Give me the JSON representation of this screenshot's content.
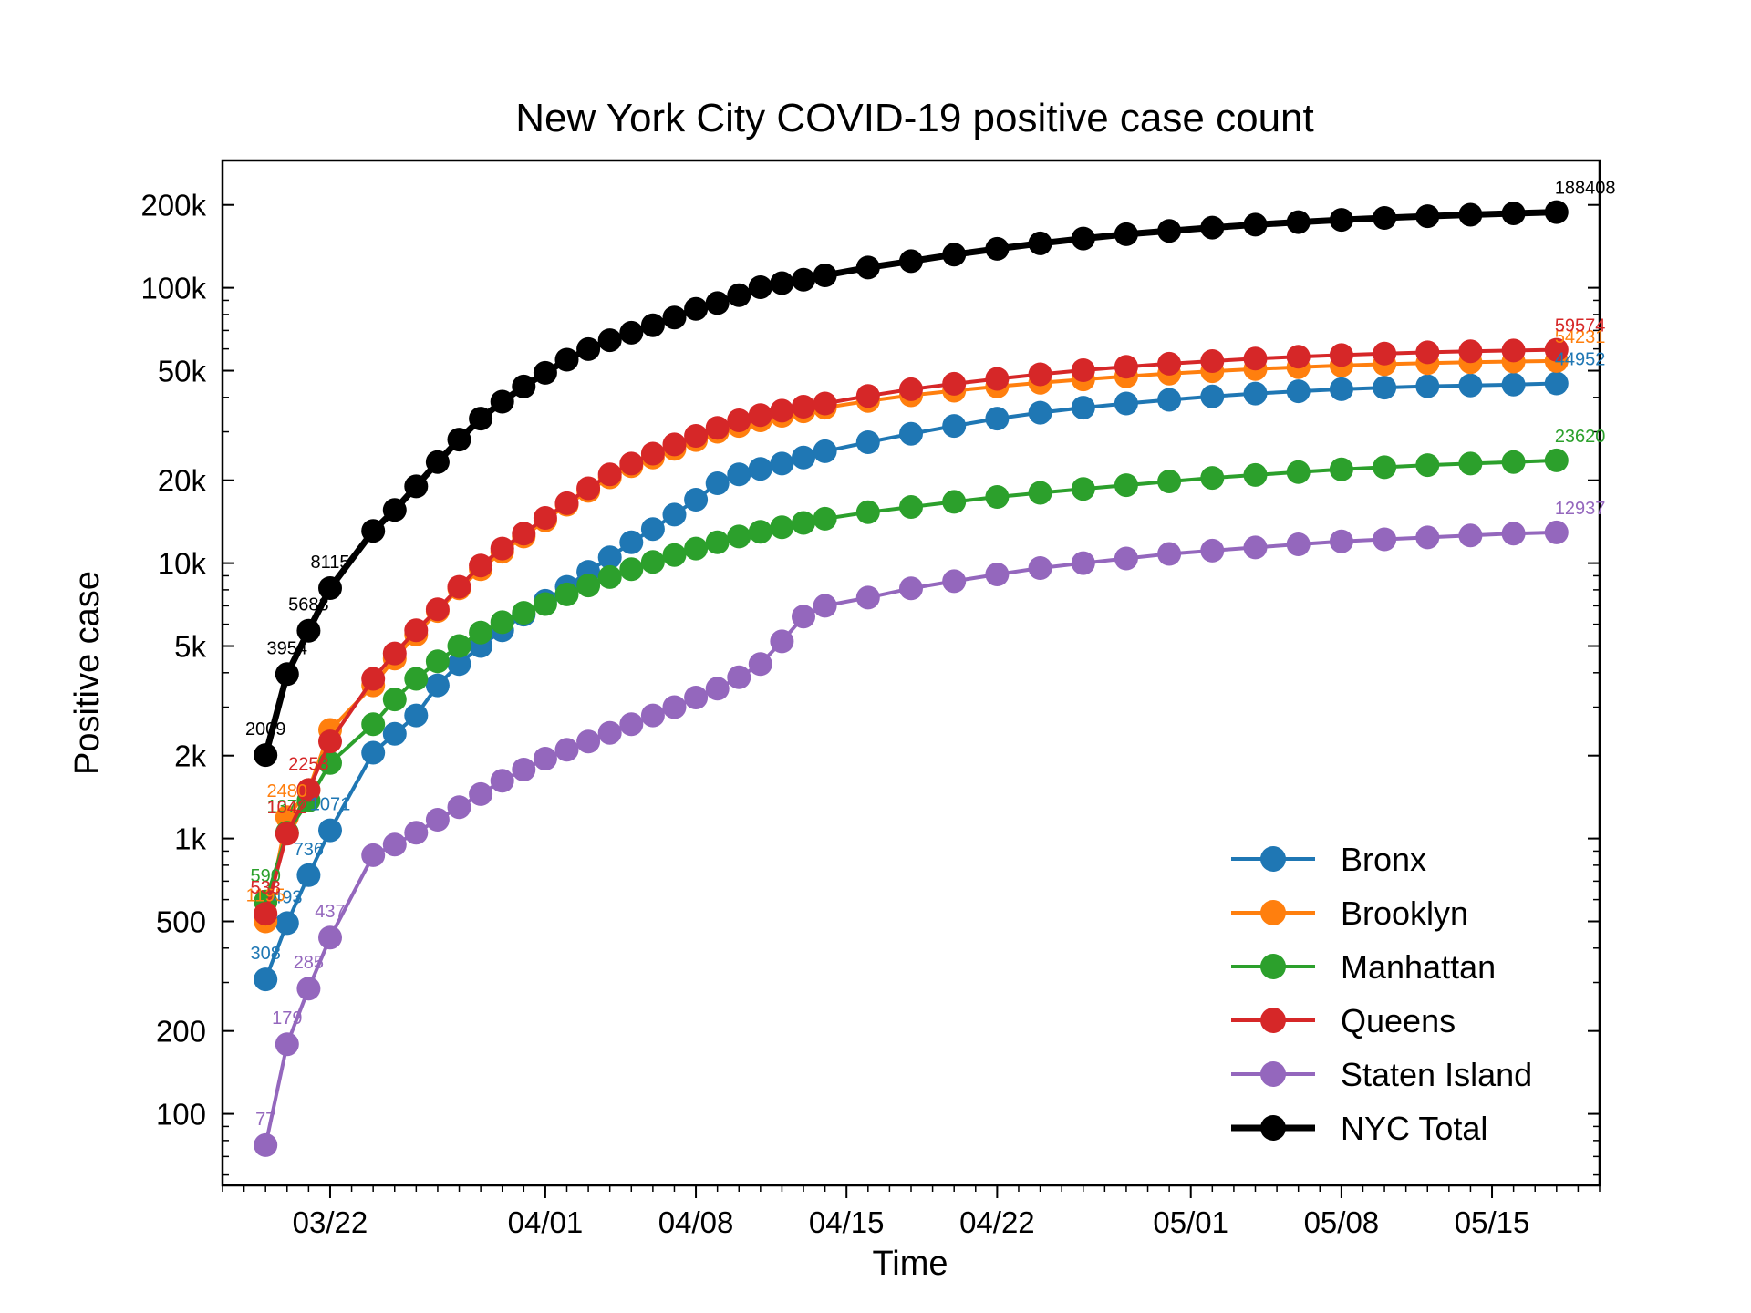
{
  "chart_data": {
    "type": "line",
    "title": "New York City COVID-19 positive case count",
    "xlabel": "Time",
    "ylabel": "Positive case",
    "yscale": "log",
    "ylim": [
      55,
      290000
    ],
    "xlim": [
      "2020-03-17",
      "2020-05-20"
    ],
    "grid": false,
    "legend_placement": "lower-right",
    "x_tick_labels": [
      {
        "date": "2020-03-22",
        "label": "03/22"
      },
      {
        "date": "2020-04-01",
        "label": "04/01"
      },
      {
        "date": "2020-04-08",
        "label": "04/08"
      },
      {
        "date": "2020-04-15",
        "label": "04/15"
      },
      {
        "date": "2020-04-22",
        "label": "04/22"
      },
      {
        "date": "2020-05-01",
        "label": "05/01"
      },
      {
        "date": "2020-05-08",
        "label": "05/08"
      },
      {
        "date": "2020-05-15",
        "label": "05/15"
      }
    ],
    "y_tick_labels": [
      {
        "value": 100,
        "label": "100"
      },
      {
        "value": 200,
        "label": "200"
      },
      {
        "value": 500,
        "label": "500"
      },
      {
        "value": 1000,
        "label": "1k"
      },
      {
        "value": 2000,
        "label": "2k"
      },
      {
        "value": 5000,
        "label": "5k"
      },
      {
        "value": 10000,
        "label": "10k"
      },
      {
        "value": 20000,
        "label": "20k"
      },
      {
        "value": 50000,
        "label": "50k"
      },
      {
        "value": 100000,
        "label": "100k"
      },
      {
        "value": 200000,
        "label": "200k"
      }
    ],
    "x": [
      "2020-03-19",
      "2020-03-20",
      "2020-03-21",
      "2020-03-22",
      "2020-03-24",
      "2020-03-25",
      "2020-03-26",
      "2020-03-27",
      "2020-03-28",
      "2020-03-29",
      "2020-03-30",
      "2020-03-31",
      "2020-04-01",
      "2020-04-02",
      "2020-04-03",
      "2020-04-04",
      "2020-04-05",
      "2020-04-06",
      "2020-04-07",
      "2020-04-08",
      "2020-04-09",
      "2020-04-10",
      "2020-04-11",
      "2020-04-12",
      "2020-04-13",
      "2020-04-14",
      "2020-04-16",
      "2020-04-18",
      "2020-04-20",
      "2020-04-22",
      "2020-04-24",
      "2020-04-26",
      "2020-04-28",
      "2020-04-30",
      "2020-05-02",
      "2020-05-04",
      "2020-05-06",
      "2020-05-08",
      "2020-05-10",
      "2020-05-12",
      "2020-05-14",
      "2020-05-16",
      "2020-05-18"
    ],
    "series": [
      {
        "name": "Bronx",
        "color": "#1f77b4",
        "values": [
          308,
          493,
          736,
          1071,
          2050,
          2400,
          2800,
          3600,
          4300,
          5000,
          5700,
          6500,
          7300,
          8200,
          9300,
          10500,
          11900,
          13300,
          15000,
          17000,
          19500,
          21000,
          22000,
          23000,
          24200,
          25500,
          27500,
          29500,
          31500,
          33500,
          35200,
          36700,
          38000,
          39200,
          40300,
          41300,
          42100,
          42800,
          43400,
          43900,
          44200,
          44500,
          44952
        ]
      },
      {
        "name": "Brooklyn",
        "color": "#ff7f0e",
        "values": [
          500,
          1195,
          1500,
          2480,
          3600,
          4500,
          5500,
          6700,
          8100,
          9500,
          11000,
          12500,
          14300,
          16300,
          18300,
          20500,
          22500,
          24200,
          26000,
          28000,
          30000,
          31500,
          33000,
          34300,
          35600,
          36700,
          38800,
          40700,
          42300,
          43800,
          45200,
          46500,
          47700,
          48800,
          49800,
          50700,
          51500,
          52200,
          52800,
          53300,
          53700,
          54000,
          54231
        ]
      },
      {
        "name": "Manhattan",
        "color": "#2ca02c",
        "values": [
          590,
          1050,
          1374,
          1880,
          2600,
          3200,
          3800,
          4400,
          5000,
          5600,
          6100,
          6600,
          7100,
          7700,
          8300,
          8900,
          9500,
          10100,
          10700,
          11300,
          11900,
          12500,
          13000,
          13500,
          14000,
          14500,
          15300,
          16000,
          16700,
          17400,
          18000,
          18600,
          19200,
          19800,
          20400,
          20900,
          21400,
          21900,
          22300,
          22700,
          23000,
          23300,
          23620
        ]
      },
      {
        "name": "Queens",
        "color": "#d62728",
        "values": [
          533,
          1042,
          1500,
          2253,
          3800,
          4700,
          5700,
          6800,
          8200,
          9800,
          11300,
          12800,
          14600,
          16500,
          18700,
          21000,
          23000,
          25000,
          27000,
          29000,
          31000,
          33000,
          34500,
          35800,
          37000,
          38000,
          40500,
          42800,
          44800,
          46700,
          48500,
          50200,
          51700,
          53000,
          54200,
          55300,
          56200,
          57000,
          57700,
          58300,
          58800,
          59200,
          59574
        ]
      },
      {
        "name": "Staten Island",
        "color": "#9467bd",
        "values": [
          77,
          179,
          285,
          437,
          870,
          950,
          1050,
          1170,
          1300,
          1450,
          1620,
          1780,
          1950,
          2100,
          2250,
          2420,
          2600,
          2800,
          3000,
          3250,
          3500,
          3850,
          4300,
          5200,
          6400,
          7000,
          7500,
          8100,
          8600,
          9100,
          9600,
          10000,
          10400,
          10800,
          11100,
          11400,
          11700,
          12000,
          12200,
          12400,
          12600,
          12800,
          12937
        ]
      },
      {
        "name": "NYC Total",
        "color": "#000000",
        "values": [
          2009,
          3954,
          5683,
          8115,
          13100,
          15600,
          19000,
          23300,
          28100,
          33500,
          38600,
          43800,
          49100,
          54800,
          59900,
          64500,
          68700,
          73100,
          78000,
          83800,
          88000,
          94000,
          100500,
          104000,
          107000,
          111000,
          118500,
          125000,
          132000,
          138500,
          145000,
          151000,
          156500,
          161000,
          165500,
          169500,
          173200,
          176500,
          179400,
          182000,
          184300,
          186400,
          188408
        ]
      }
    ],
    "data_labels": {
      "Bronx": [
        "308",
        "493",
        "736",
        "1071",
        "44952"
      ],
      "Brooklyn": [
        "1195",
        "2480",
        "54231"
      ],
      "Manhattan": [
        "590",
        "1374",
        "23620"
      ],
      "Queens": [
        "533",
        "1042",
        "2253",
        "59574"
      ],
      "Staten Island": [
        "77",
        "179",
        "285",
        "437",
        "12937"
      ],
      "NYC Total": [
        "2009",
        "3954",
        "5683",
        "8115",
        "188408"
      ]
    }
  }
}
